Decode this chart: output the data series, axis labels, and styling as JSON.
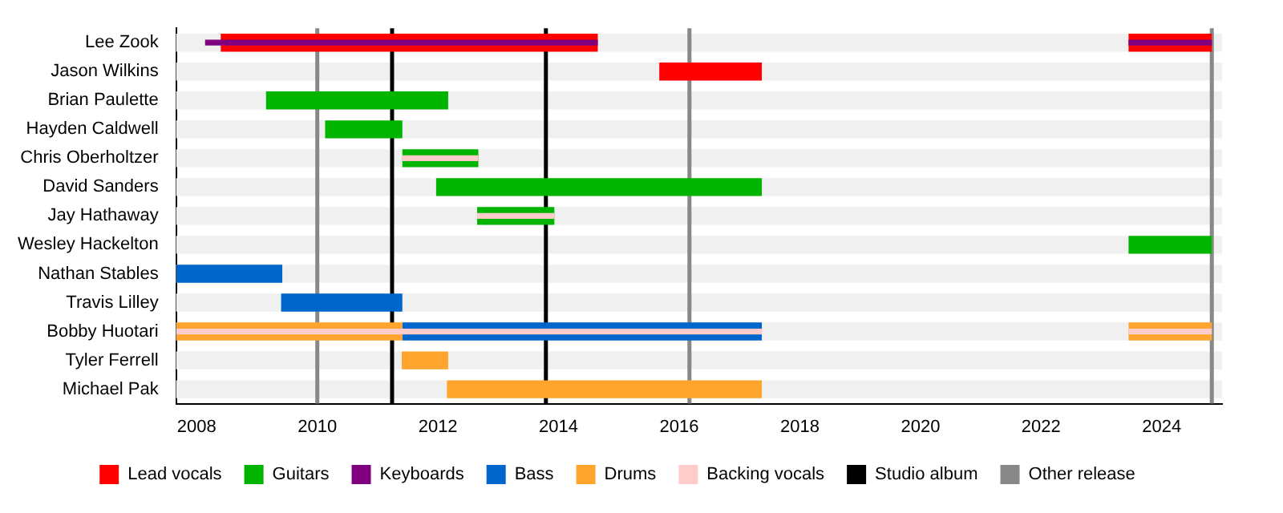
{
  "chart_data": {
    "type": "bar",
    "orientation": "horizontal",
    "categories": [
      "Lee Zook",
      "Jason Wilkins",
      "Brian Paulette",
      "Hayden Caldwell",
      "Chris Oberholtzer",
      "David Sanders",
      "Jay Hathaway",
      "Wesley Hackelton",
      "Nathan Stables",
      "Travis Lilley",
      "Bobby Huotari",
      "Tyler Ferrell",
      "Michael Pak"
    ],
    "series": [
      {
        "name": "Lead vocals",
        "color": "#ff0000",
        "base": [
          2008.4,
          2015.67,
          null,
          null,
          null,
          null,
          null,
          null,
          null,
          null,
          null,
          null,
          null
        ],
        "values": [
          6.25,
          1.7,
          null,
          null,
          null,
          null,
          null,
          null,
          null,
          null,
          null,
          null,
          null
        ]
      },
      {
        "color": "#ff0000",
        "base": [
          2023.45,
          null,
          null,
          null,
          null,
          null,
          null,
          null,
          null,
          null,
          null,
          null,
          null
        ],
        "values": [
          1.38,
          null,
          null,
          null,
          null,
          null,
          null,
          null,
          null,
          null,
          null,
          null,
          null
        ]
      },
      {
        "name": "Guitars",
        "color": "#00b400",
        "base": [
          null,
          null,
          2009.15,
          2010.13,
          2011.41,
          2011.97,
          2012.65,
          2023.45,
          null,
          null,
          null,
          null,
          null
        ],
        "values": [
          null,
          null,
          3.02,
          1.28,
          1.26,
          5.4,
          1.28,
          1.38,
          null,
          null,
          null,
          null,
          null
        ]
      },
      {
        "name": "Keyboards",
        "color": "#800080",
        "base": [
          2008.14,
          null,
          null,
          null,
          null,
          null,
          null,
          null,
          null,
          null,
          null,
          null,
          null
        ],
        "values": [
          6.51,
          null,
          null,
          null,
          null,
          null,
          null,
          null,
          null,
          null,
          null,
          null,
          null
        ]
      },
      {
        "color": "#800080",
        "base": [
          2023.45,
          null,
          null,
          null,
          null,
          null,
          null,
          null,
          null,
          null,
          null,
          null,
          null
        ],
        "values": [
          1.38,
          null,
          null,
          null,
          null,
          null,
          null,
          null,
          null,
          null,
          null,
          null,
          null
        ]
      },
      {
        "name": "Bass",
        "color": "#0066cc",
        "base": [
          null,
          null,
          null,
          null,
          null,
          null,
          null,
          null,
          2007.66,
          2009.4,
          2011.41,
          null,
          null
        ],
        "values": [
          null,
          null,
          null,
          null,
          null,
          null,
          null,
          null,
          1.76,
          2.01,
          5.96,
          null,
          null
        ]
      },
      {
        "name": "Drums",
        "color": "#ffa42c",
        "base": [
          null,
          null,
          null,
          null,
          null,
          null,
          null,
          null,
          null,
          null,
          2007.66,
          2011.4,
          2012.15
        ],
        "values": [
          null,
          null,
          null,
          null,
          null,
          null,
          null,
          null,
          null,
          null,
          3.75,
          0.77,
          5.22
        ]
      },
      {
        "color": "#ffa42c",
        "base": [
          null,
          null,
          null,
          null,
          null,
          null,
          null,
          null,
          null,
          null,
          2023.45,
          null,
          null
        ],
        "values": [
          null,
          null,
          null,
          null,
          null,
          null,
          null,
          null,
          null,
          null,
          1.38,
          null,
          null
        ]
      },
      {
        "name": "Backing vocals",
        "color": "#ffcccc",
        "base": [
          null,
          null,
          null,
          null,
          2011.41,
          null,
          2012.65,
          null,
          null,
          null,
          2007.66,
          null,
          null
        ],
        "values": [
          null,
          null,
          null,
          null,
          1.26,
          null,
          1.28,
          null,
          null,
          null,
          9.71,
          null,
          null
        ]
      },
      {
        "color": "#ffcccc",
        "base": [
          null,
          null,
          null,
          null,
          null,
          null,
          null,
          null,
          null,
          null,
          2023.45,
          null,
          null
        ],
        "values": [
          null,
          null,
          null,
          null,
          null,
          null,
          null,
          null,
          null,
          null,
          1.38,
          null,
          null
        ]
      }
    ],
    "xlim": [
      2007.66,
      2025.0
    ],
    "xticks": [
      2008,
      2010,
      2012,
      2014,
      2016,
      2018,
      2020,
      2022,
      2024
    ],
    "ref_lines": [
      {
        "axis": "x",
        "value": 2011.24,
        "label": "Studio album",
        "color": "#000000"
      },
      {
        "axis": "x",
        "value": 2013.79,
        "color": "#000000"
      },
      {
        "axis": "x",
        "value": 2010.0,
        "label": "Other release",
        "color": "#888888"
      },
      {
        "axis": "x",
        "value": 2016.17,
        "color": "#888888"
      },
      {
        "axis": "x",
        "value": 2024.83,
        "color": "#888888"
      }
    ],
    "grid": false,
    "legend": "bottom"
  }
}
